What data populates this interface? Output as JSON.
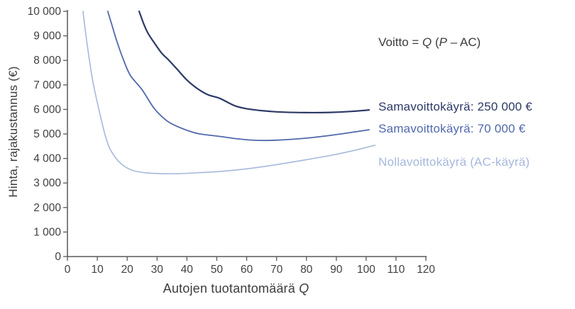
{
  "page": {
    "background": "#ffffff"
  },
  "chart_data": {
    "type": "line",
    "title": "",
    "ylabel": "Hinta, rajakustannus (€)",
    "xlabel_parts": [
      {
        "text": "Autojen tuotantomäärä "
      },
      {
        "text": "Q",
        "italic": true
      }
    ],
    "annotation_parts": [
      {
        "text": "Voitto = "
      },
      {
        "text": "Q",
        "italic": true
      },
      {
        "text": " ("
      },
      {
        "text": "P",
        "italic": true
      },
      {
        "text": " – AC)"
      }
    ],
    "annotation_color": "#3c3c3c",
    "axis_color": "#58595b",
    "tick_text_color": "#414042",
    "grid": false,
    "xlim": [
      0,
      120
    ],
    "ylim": [
      0,
      10000
    ],
    "x_ticks": {
      "values": [
        0,
        10,
        20,
        30,
        40,
        50,
        60,
        70,
        80,
        90,
        100,
        110,
        120
      ],
      "labels": [
        "0",
        "10",
        "20",
        "30",
        "40",
        "50",
        "60",
        "70",
        "80",
        "90",
        "100",
        "110",
        "120"
      ]
    },
    "y_ticks": {
      "values": [
        0,
        1000,
        2000,
        3000,
        4000,
        5000,
        6000,
        7000,
        8000,
        9000,
        10000
      ],
      "labels": [
        "0",
        "1 000",
        "2 000",
        "3 000",
        "4 000",
        "5 000",
        "6 000",
        "7 000",
        "8 000",
        "9 000",
        "10 000"
      ]
    },
    "legend_position": "inline labels right of curve ends",
    "series": [
      {
        "name": "Samavoittokäyrä: 250 000 €",
        "color": "#2c3a66",
        "stroke_width": 2.2,
        "points": [
          [
            24,
            10000
          ],
          [
            25.5,
            9500
          ],
          [
            27,
            9100
          ],
          [
            29,
            8730
          ],
          [
            31.5,
            8300
          ],
          [
            34,
            8000
          ],
          [
            37,
            7600
          ],
          [
            40,
            7200
          ],
          [
            43.5,
            6850
          ],
          [
            47,
            6600
          ],
          [
            51,
            6450
          ],
          [
            56,
            6150
          ],
          [
            60,
            6030
          ],
          [
            66,
            5940
          ],
          [
            72,
            5890
          ],
          [
            80,
            5870
          ],
          [
            88,
            5880
          ],
          [
            95,
            5920
          ],
          [
            101,
            5980
          ]
        ]
      },
      {
        "name": "Samavoittokäyrä: 70 000 €",
        "color": "#5169ac",
        "stroke_width": 1.8,
        "points": [
          [
            13.5,
            10000
          ],
          [
            15,
            9400
          ],
          [
            16.5,
            8800
          ],
          [
            18.5,
            8100
          ],
          [
            21,
            7400
          ],
          [
            25,
            6800
          ],
          [
            29,
            6050
          ],
          [
            33,
            5560
          ],
          [
            36,
            5350
          ],
          [
            40,
            5150
          ],
          [
            44,
            5010
          ],
          [
            51,
            4900
          ],
          [
            57,
            4800
          ],
          [
            63,
            4740
          ],
          [
            70,
            4745
          ],
          [
            80,
            4830
          ],
          [
            90,
            4975
          ],
          [
            101,
            5170
          ]
        ]
      },
      {
        "name": "Nollavoittokäyrä (AC-käyrä)",
        "color": "#a6b8dc",
        "stroke_width": 1.6,
        "points": [
          [
            5.2,
            10000
          ],
          [
            6,
            9200
          ],
          [
            7,
            8300
          ],
          [
            8.3,
            7280
          ],
          [
            9.5,
            6550
          ],
          [
            11,
            5750
          ],
          [
            12.5,
            5000
          ],
          [
            14,
            4450
          ],
          [
            16,
            4050
          ],
          [
            18,
            3780
          ],
          [
            21,
            3550
          ],
          [
            24,
            3450
          ],
          [
            28,
            3400
          ],
          [
            33,
            3380
          ],
          [
            38,
            3385
          ],
          [
            44,
            3420
          ],
          [
            51,
            3470
          ],
          [
            58,
            3550
          ],
          [
            65,
            3660
          ],
          [
            72,
            3790
          ],
          [
            80,
            3950
          ],
          [
            88,
            4120
          ],
          [
            95,
            4300
          ],
          [
            103,
            4540
          ]
        ]
      }
    ]
  }
}
